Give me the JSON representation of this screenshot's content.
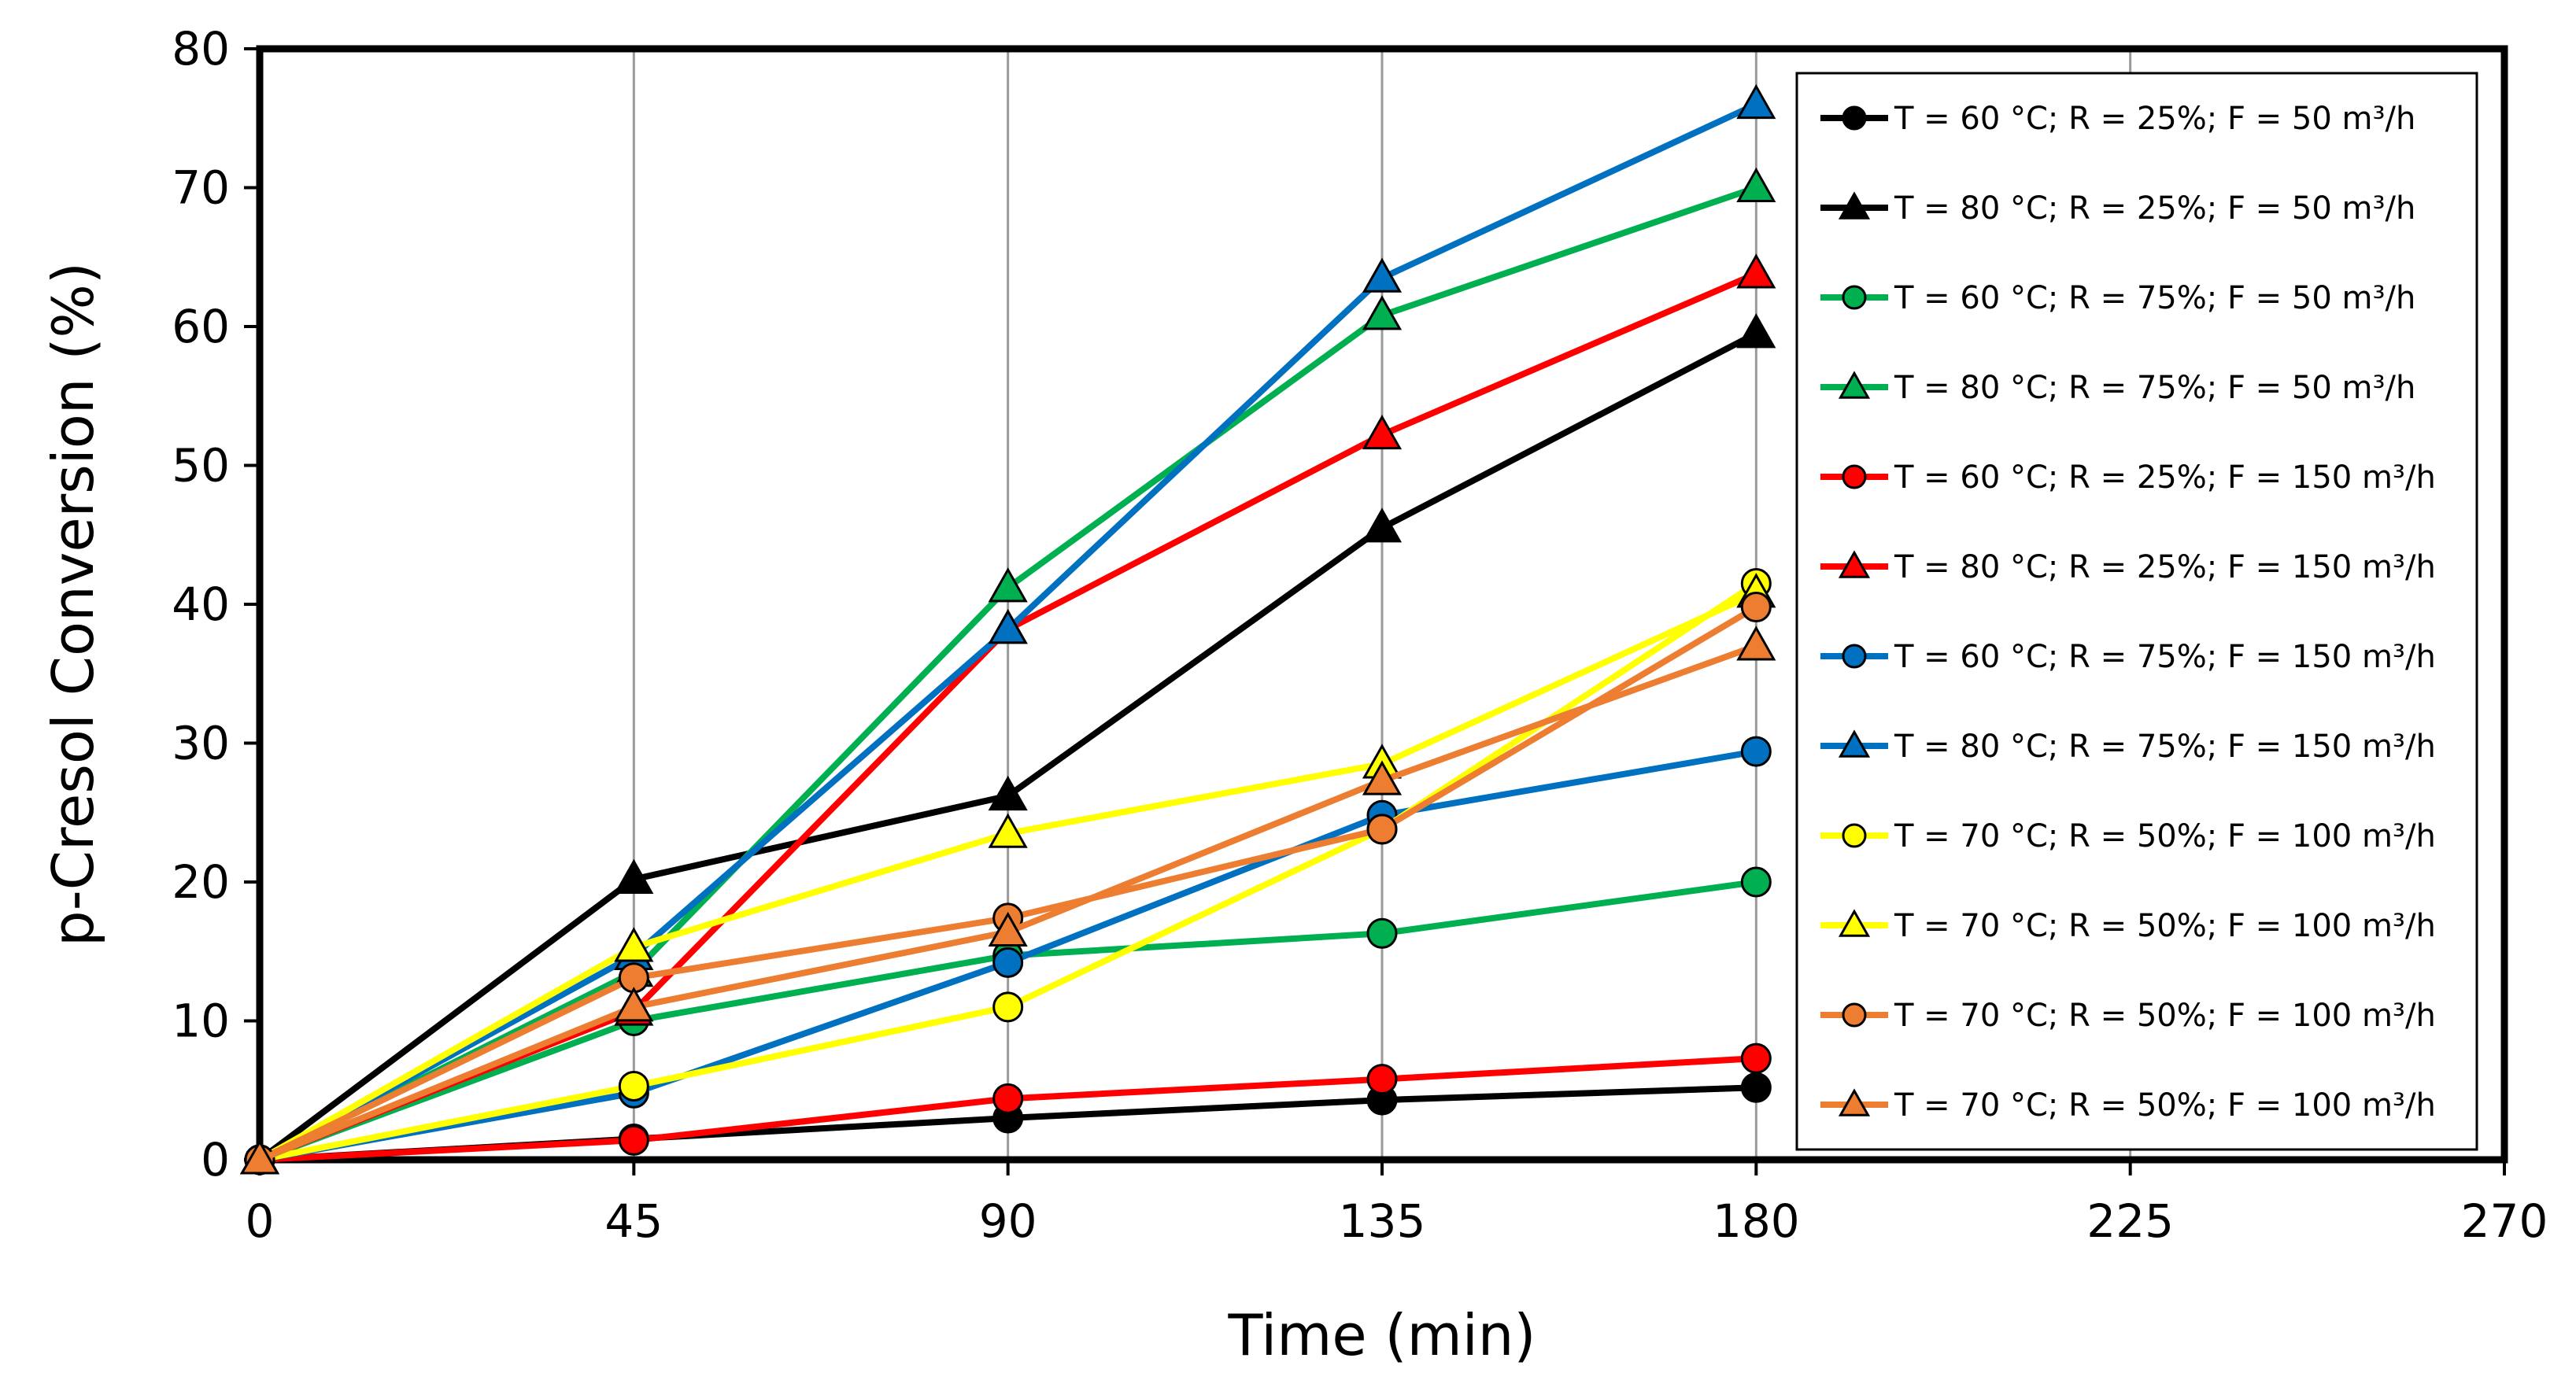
{
  "chart_data": {
    "type": "line",
    "title": "",
    "xlabel": "Time (min)",
    "ylabel": "p-Cresol Conversion (%)",
    "xlim": [
      0,
      270
    ],
    "ylim": [
      0,
      80
    ],
    "x_ticks": [
      0,
      45,
      90,
      135,
      180,
      225,
      270
    ],
    "y_ticks": [
      0,
      10,
      20,
      30,
      40,
      50,
      60,
      70,
      80
    ],
    "grid": "vertical-gridlines",
    "legend_position": "right-inside",
    "x": [
      0,
      45,
      90,
      135,
      180
    ],
    "series": [
      {
        "name": "T = 60 °C; R = 25%; F = 50 m³/h",
        "color": "#000000",
        "marker": "circle",
        "values": [
          0,
          1.5,
          3.0,
          4.3,
          5.2
        ]
      },
      {
        "name": "T = 80 °C; R = 25%; F = 50 m³/h",
        "color": "#000000",
        "marker": "triangle",
        "values": [
          0,
          20.2,
          26.2,
          45.5,
          59.5
        ]
      },
      {
        "name": "T = 60 °C; R = 75%; F = 50 m³/h",
        "color": "#00B050",
        "marker": "circle",
        "values": [
          0,
          10.0,
          14.7,
          16.3,
          20.0
        ]
      },
      {
        "name": "T = 80 °C; R = 75%; F = 50 m³/h",
        "color": "#00B050",
        "marker": "triangle",
        "values": [
          0,
          13.5,
          41.2,
          60.8,
          70.0
        ]
      },
      {
        "name": "T = 60 °C; R = 25%; F = 150 m³/h",
        "color": "#FF0000",
        "marker": "circle",
        "values": [
          0,
          1.4,
          4.4,
          5.8,
          7.3
        ]
      },
      {
        "name": "T = 80 °C; R = 25%; F = 150 m³/h",
        "color": "#FF0000",
        "marker": "triangle",
        "values": [
          0,
          10.7,
          38.2,
          52.2,
          63.8
        ]
      },
      {
        "name": "T = 60 °C; R = 75%; F = 150 m³/h",
        "color": "#0070C0",
        "marker": "circle",
        "values": [
          0,
          4.8,
          14.2,
          24.8,
          29.4
        ]
      },
      {
        "name": "T = 80 °C; R = 75%; F = 150 m³/h",
        "color": "#0070C0",
        "marker": "triangle",
        "values": [
          0,
          14.7,
          38.2,
          63.5,
          76.0
        ]
      },
      {
        "name": "T = 70 °C; R = 50%; F = 100 m³/h",
        "color": "#FFFF00",
        "marker": "circle",
        "values": [
          0,
          5.3,
          11.0,
          23.8,
          41.5
        ]
      },
      {
        "name": "T = 70 °C; R = 50%; F = 100 m³/h",
        "color": "#FFFF00",
        "marker": "triangle",
        "values": [
          0,
          15.3,
          23.5,
          28.5,
          40.8
        ]
      },
      {
        "name": "T = 70 °C; R = 50%; F = 100 m³/h",
        "color": "#ED7D31",
        "marker": "circle",
        "values": [
          0,
          13.1,
          17.4,
          23.8,
          39.8
        ]
      },
      {
        "name": "T = 70 °C; R = 50%; F = 100 m³/h",
        "color": "#ED7D31",
        "marker": "triangle",
        "values": [
          0,
          11.0,
          16.4,
          27.3,
          37.0
        ]
      }
    ]
  }
}
